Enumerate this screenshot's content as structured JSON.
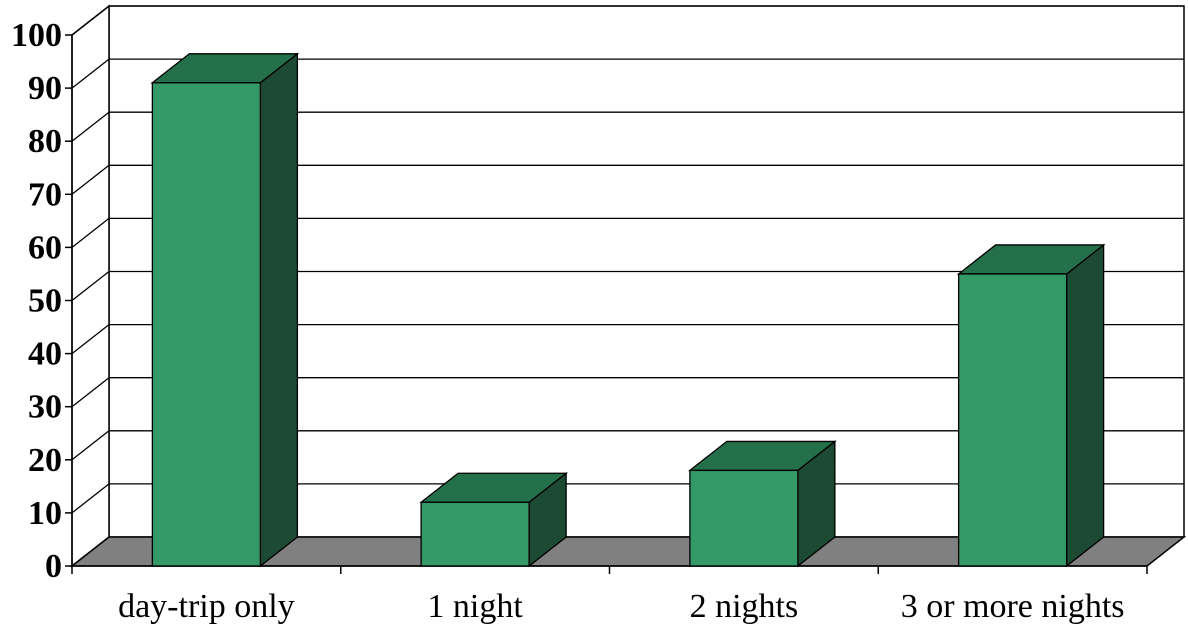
{
  "chart_data": {
    "type": "bar",
    "categories": [
      "day-trip only",
      "1 night",
      "2 nights",
      "3 or more nights"
    ],
    "values": [
      91,
      12,
      18,
      55
    ],
    "ylim": [
      0,
      100
    ],
    "yticks": [
      0,
      10,
      20,
      30,
      40,
      50,
      60,
      70,
      80,
      90,
      100
    ],
    "grid": true,
    "legend": "none",
    "colors": {
      "bar_front": "#339966",
      "bar_top": "#24704a",
      "bar_side": "#1c4a33",
      "floor": "#808080",
      "gridline": "#000000"
    }
  }
}
